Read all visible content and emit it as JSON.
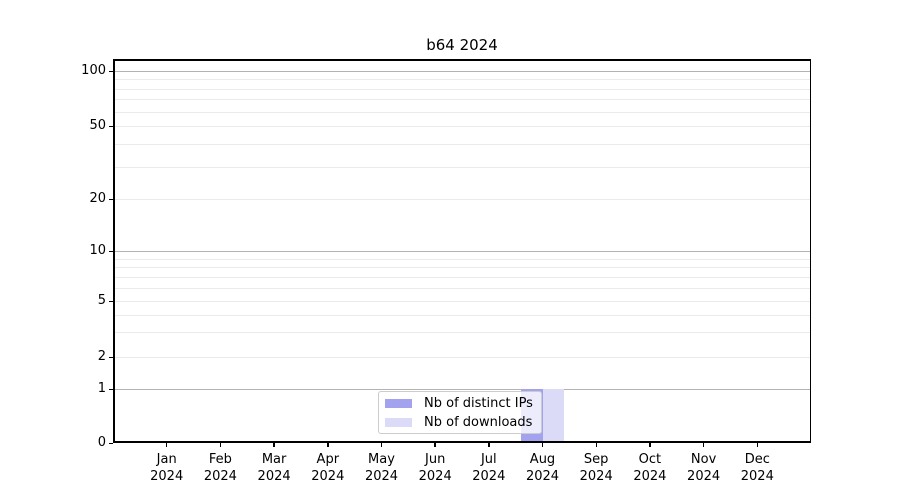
{
  "chart_data": {
    "type": "bar",
    "title": "b64 2024",
    "categories": [
      "Jan 2024",
      "Feb 2024",
      "Mar 2024",
      "Apr 2024",
      "May 2024",
      "Jun 2024",
      "Jul 2024",
      "Aug 2024",
      "Sep 2024",
      "Oct 2024",
      "Nov 2024",
      "Dec 2024"
    ],
    "series": [
      {
        "name": "Nb of distinct IPs",
        "color": "#a2a2ef",
        "values": [
          0,
          0,
          0,
          0,
          0,
          0,
          0,
          1,
          0,
          0,
          0,
          0
        ]
      },
      {
        "name": "Nb of downloads",
        "color": "#dbdbf8",
        "values": [
          0,
          0,
          0,
          0,
          0,
          0,
          0,
          1,
          0,
          0,
          0,
          0
        ]
      }
    ],
    "xlabel": "",
    "ylabel": "",
    "yscale": "symlog",
    "ylim": [
      0,
      120
    ],
    "y_ticks": [
      0,
      1,
      2,
      5,
      10,
      20,
      50,
      100
    ],
    "y_tick_labels": [
      "0",
      "1",
      "2",
      "5",
      "10",
      "20",
      "50",
      "100"
    ],
    "y_major_gridlines": [
      1,
      10,
      100
    ],
    "y_minor_gridlines": [
      2,
      3,
      4,
      5,
      6,
      7,
      8,
      9,
      20,
      30,
      40,
      50,
      60,
      70,
      80,
      90
    ],
    "grid": true,
    "legend_position": "lower center",
    "colors": {
      "distinct_ips": "#a2a2ef",
      "downloads": "#dbdbf8",
      "major_grid": "#b3b3b3",
      "minor_grid": "#eaeaea",
      "spine": "#000000",
      "legend_border": "#cccccc",
      "background": "#ffffff"
    }
  }
}
